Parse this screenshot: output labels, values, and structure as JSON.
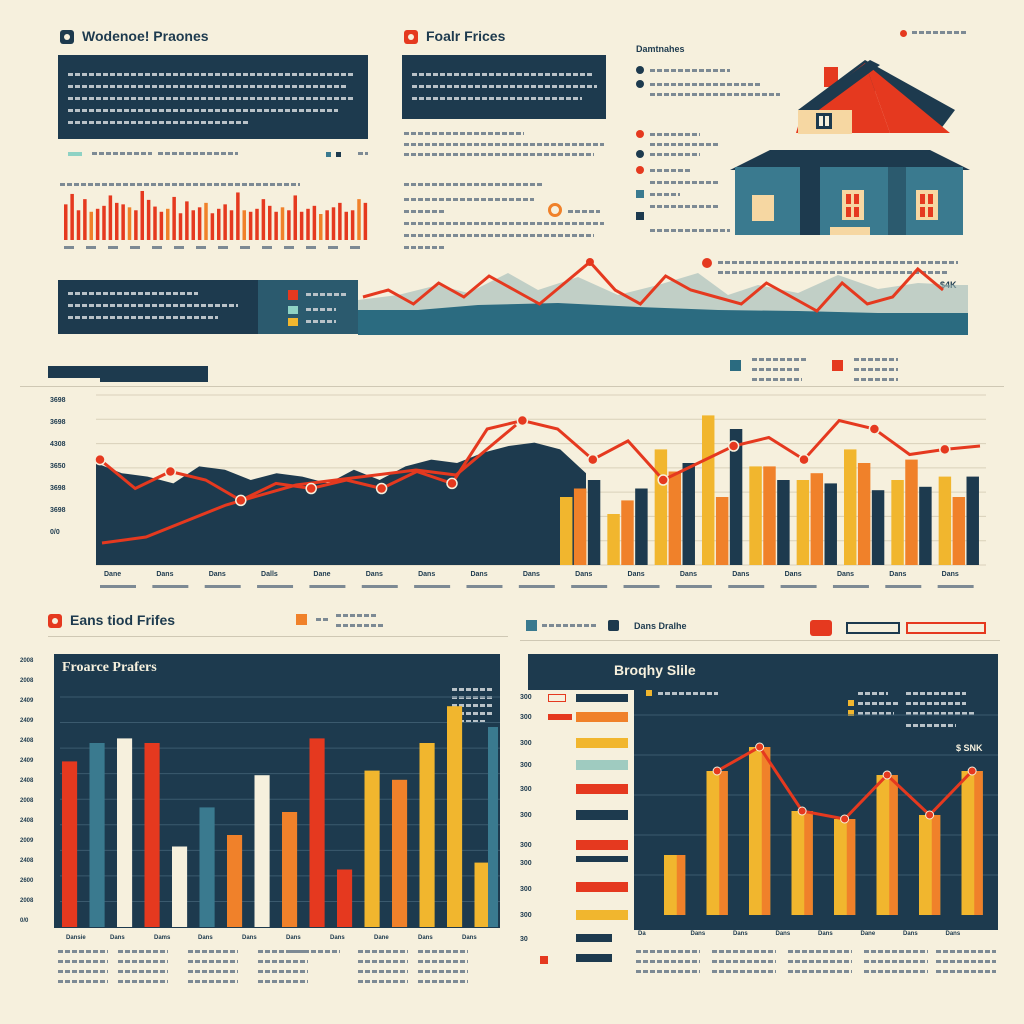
{
  "headers": {
    "top_left": "Wodenoe! Praones",
    "top_middle": "Foalr Frices",
    "top_right": "Damtnahes",
    "bottom_left": "Eans tiod Frifes",
    "bottom_right_tag": "Dans Dralhe"
  },
  "panels": {
    "finance_title": "Froarce Prafers",
    "property_title": "Broqhy Slile",
    "property_value_label": "$ SNK",
    "wave_value_label": "$4K"
  },
  "colors": {
    "navy": "#1d3a4e",
    "teal": "#3a7a8f",
    "red": "#e5391f",
    "orange": "#f0812a",
    "yellow": "#f1b62e",
    "cream": "#f6f0dd",
    "pale": "#e9dfc3"
  },
  "chart_data": [
    {
      "type": "bar",
      "title": "",
      "values": [
        48,
        62,
        40,
        55,
        38,
        42,
        46,
        60,
        50,
        48,
        44,
        40,
        66,
        54,
        45,
        38,
        42,
        58,
        36,
        52,
        40,
        44,
        50,
        36,
        42,
        48,
        40,
        64,
        40,
        38,
        42,
        55,
        46,
        38,
        44,
        40,
        60,
        38,
        42,
        46,
        35,
        40,
        44,
        50,
        38,
        40,
        55,
        50
      ],
      "colors_pattern": [
        "red",
        "red",
        "red",
        "red",
        "red"
      ],
      "ylim": [
        0,
        70
      ]
    },
    {
      "type": "line",
      "title": "",
      "y": [
        4,
        5,
        3,
        6,
        4,
        7,
        5,
        3,
        6,
        9,
        5,
        3,
        7,
        5,
        4,
        3,
        6,
        4,
        2,
        6,
        3,
        4,
        8,
        5
      ],
      "ylim": [
        0,
        10
      ]
    },
    {
      "type": "bar",
      "title": "",
      "ylabels": [
        "3698",
        "3698",
        "4308",
        "3650",
        "3698",
        "3698",
        "0/0"
      ],
      "xlabels": [
        "Dane",
        "Dans",
        "Dans",
        "Dalls",
        "Dane",
        "Dans",
        "Dans",
        "Dans",
        "Dans",
        "Dans",
        "Dans",
        "Dans",
        "Dans",
        "Dans",
        "Dans",
        "Dans",
        "Dans"
      ],
      "area": [
        60,
        54,
        52,
        48,
        58,
        56,
        50,
        54,
        52,
        48,
        56,
        50,
        58,
        62,
        60,
        66,
        70,
        72,
        68,
        54
      ],
      "line": [
        62,
        45,
        55,
        50,
        38,
        48,
        45,
        50,
        45,
        55,
        48,
        80,
        85,
        80,
        62,
        73,
        50,
        60,
        70,
        75,
        62,
        85,
        80,
        65,
        68,
        70
      ],
      "series": [
        {
          "name": "",
          "color": "yellow",
          "values": [
            40,
            30,
            68,
            88,
            58,
            50,
            68,
            50,
            52
          ]
        },
        {
          "name": "",
          "color": "orange",
          "values": [
            45,
            38,
            55,
            40,
            58,
            54,
            60,
            62,
            40
          ]
        },
        {
          "name": "",
          "color": "navy",
          "values": [
            50,
            45,
            60,
            80,
            50,
            48,
            44,
            46,
            52
          ]
        }
      ],
      "ylim": [
        0,
        100
      ]
    },
    {
      "type": "bar",
      "title": "Froarce Prafers",
      "ylabels": [
        "2008",
        "2008",
        "2409",
        "2409",
        "2408",
        "2409",
        "2408",
        "2008",
        "2408",
        "2009",
        "2408",
        "2600",
        "2008",
        "0/0"
      ],
      "xlabels": [
        "Dansie",
        "Dans",
        "Dams",
        "Dans",
        "Dans",
        "Dans",
        "Dans",
        "Dane",
        "Dans",
        "Dans"
      ],
      "values": [
        72,
        80,
        82,
        80,
        35,
        52,
        40,
        66,
        50,
        82,
        25,
        68,
        64,
        80,
        96,
        28
      ],
      "colors": [
        "red",
        "teal",
        "cream",
        "red",
        "cream",
        "teal",
        "orange",
        "cream",
        "orange",
        "red",
        "red",
        "yellow",
        "orange",
        "yellow",
        "yellow",
        "yellow"
      ]
    },
    {
      "type": "bar",
      "title": "Broqhy Slile",
      "xlabels": [
        "Da",
        "Dans",
        "Dans",
        "Dans",
        "Dans",
        "Dane",
        "Dans",
        "Dans"
      ],
      "values": [
        30,
        72,
        84,
        52,
        48,
        70,
        50,
        72
      ],
      "line": [
        null,
        72,
        84,
        52,
        48,
        70,
        50,
        72
      ],
      "ylim": [
        0,
        100
      ]
    }
  ]
}
